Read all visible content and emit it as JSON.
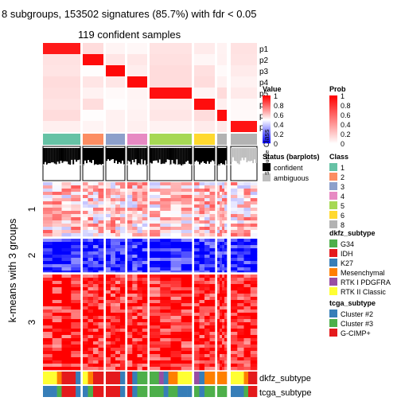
{
  "chart_data": {
    "type": "heatmap",
    "title": "8 subgroups, 153502 signatures (85.7%) with fdr < 0.05",
    "subtitle": "119 confident samples",
    "ylabel": "k-means with 3 groups",
    "probability_rows": [
      "p1",
      "p2",
      "p3",
      "p4",
      "p5",
      "p6",
      "p7",
      "p8"
    ],
    "row_groups": [
      "1",
      "2",
      "3"
    ],
    "bottom_annotations": [
      "dkfz_subtype",
      "tcga_subtype"
    ],
    "value_legend": {
      "title": "Value",
      "ticks": [
        "1",
        "0.8",
        "0.6",
        "0.4",
        "0.2",
        "0"
      ]
    },
    "prob_legend": {
      "title": "Prob",
      "ticks": [
        "1",
        "0.8",
        "0.6",
        "0.4",
        "0.2",
        "0"
      ]
    },
    "status_legend": {
      "title": "Status (barplots)",
      "items": [
        "confident",
        "ambiguous"
      ]
    },
    "class_legend": {
      "title": "Class",
      "items": [
        "1",
        "2",
        "3",
        "4",
        "5",
        "6",
        "8"
      ]
    },
    "dkfz_legend": {
      "title": "dkfz_subtype",
      "items": [
        "G34",
        "IDH",
        "K27",
        "Mesenchymal",
        "RTK I PDGFRA",
        "RTK II Classic"
      ]
    },
    "tcga_legend": {
      "title": "tcga_subtype",
      "items": [
        "Cluster #2",
        "Cluster #3",
        "G-CIMP+"
      ]
    },
    "silhouette_label": "Silhouette",
    "class_label": "Class",
    "scale_prob_label": "Prob",
    "colors": {
      "class": [
        "#66C2A5",
        "#FC8D62",
        "#8DA0CB",
        "#E78AC3",
        "#A6D854",
        "#FFD92F",
        "#B3B3B3"
      ],
      "dkfz": [
        "#4DAF4A",
        "#E41A1C",
        "#377EB8",
        "#FF7F00",
        "#984EA3",
        "#FFFF33"
      ],
      "tcga": [
        "#377EB8",
        "#4DAF4A",
        "#E41A1C"
      ],
      "high": "#FF0000",
      "low": "#0000FF"
    }
  }
}
